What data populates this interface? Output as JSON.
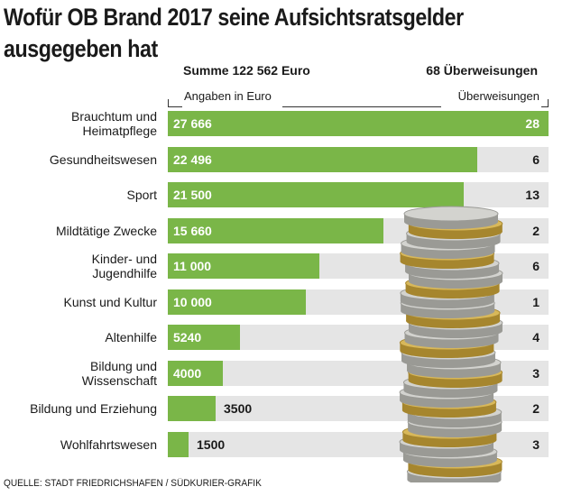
{
  "header": {
    "title_line1": "Wofür OB Brand 2017 seine Aufsichtsratsgelder",
    "title_line2": "ausgegeben hat",
    "total_label": "Summe 122 562 Euro",
    "transfers_label": "68 Überweisungen",
    "amount_unit_label": "Angaben in Euro",
    "count_unit_label": "Überweisungen"
  },
  "footer": {
    "source": "QUELLE: STADT FRIEDRICHSHAFEN / SÜDKURIER-GRAFIK"
  },
  "chart_data": {
    "type": "bar",
    "orientation": "horizontal",
    "title": "Wofür OB Brand 2017 seine Aufsichtsratsgelder ausgegeben hat",
    "xlabel": "Angaben in Euro",
    "xlim": [
      0,
      27666
    ],
    "categories": [
      "Brauchtum und Heimatpflege",
      "Gesundheitswesen",
      "Sport",
      "Mildtätige Zwecke",
      "Kinder- und Jugendhilfe",
      "Kunst und Kultur",
      "Altenhilfe",
      "Bildung und Wissenschaft",
      "Bildung und Erziehung",
      "Wohlfahrtswesen"
    ],
    "series": [
      {
        "name": "Angaben in Euro",
        "values": [
          27666,
          22496,
          21500,
          15660,
          11000,
          10000,
          5240,
          4000,
          3500,
          1500
        ],
        "labels": [
          "27 666",
          "22 496",
          "21 500",
          "15 660",
          "11 000",
          "10 000",
          "5240",
          "4000",
          "3500",
          "1500"
        ]
      },
      {
        "name": "Überweisungen",
        "values": [
          28,
          6,
          13,
          2,
          6,
          1,
          4,
          3,
          2,
          3
        ]
      }
    ],
    "colors": {
      "bar": "#7ab648",
      "track": "#e5e5e5",
      "bar_text": "#ffffff",
      "outside_text": "#1a1a1a"
    }
  }
}
